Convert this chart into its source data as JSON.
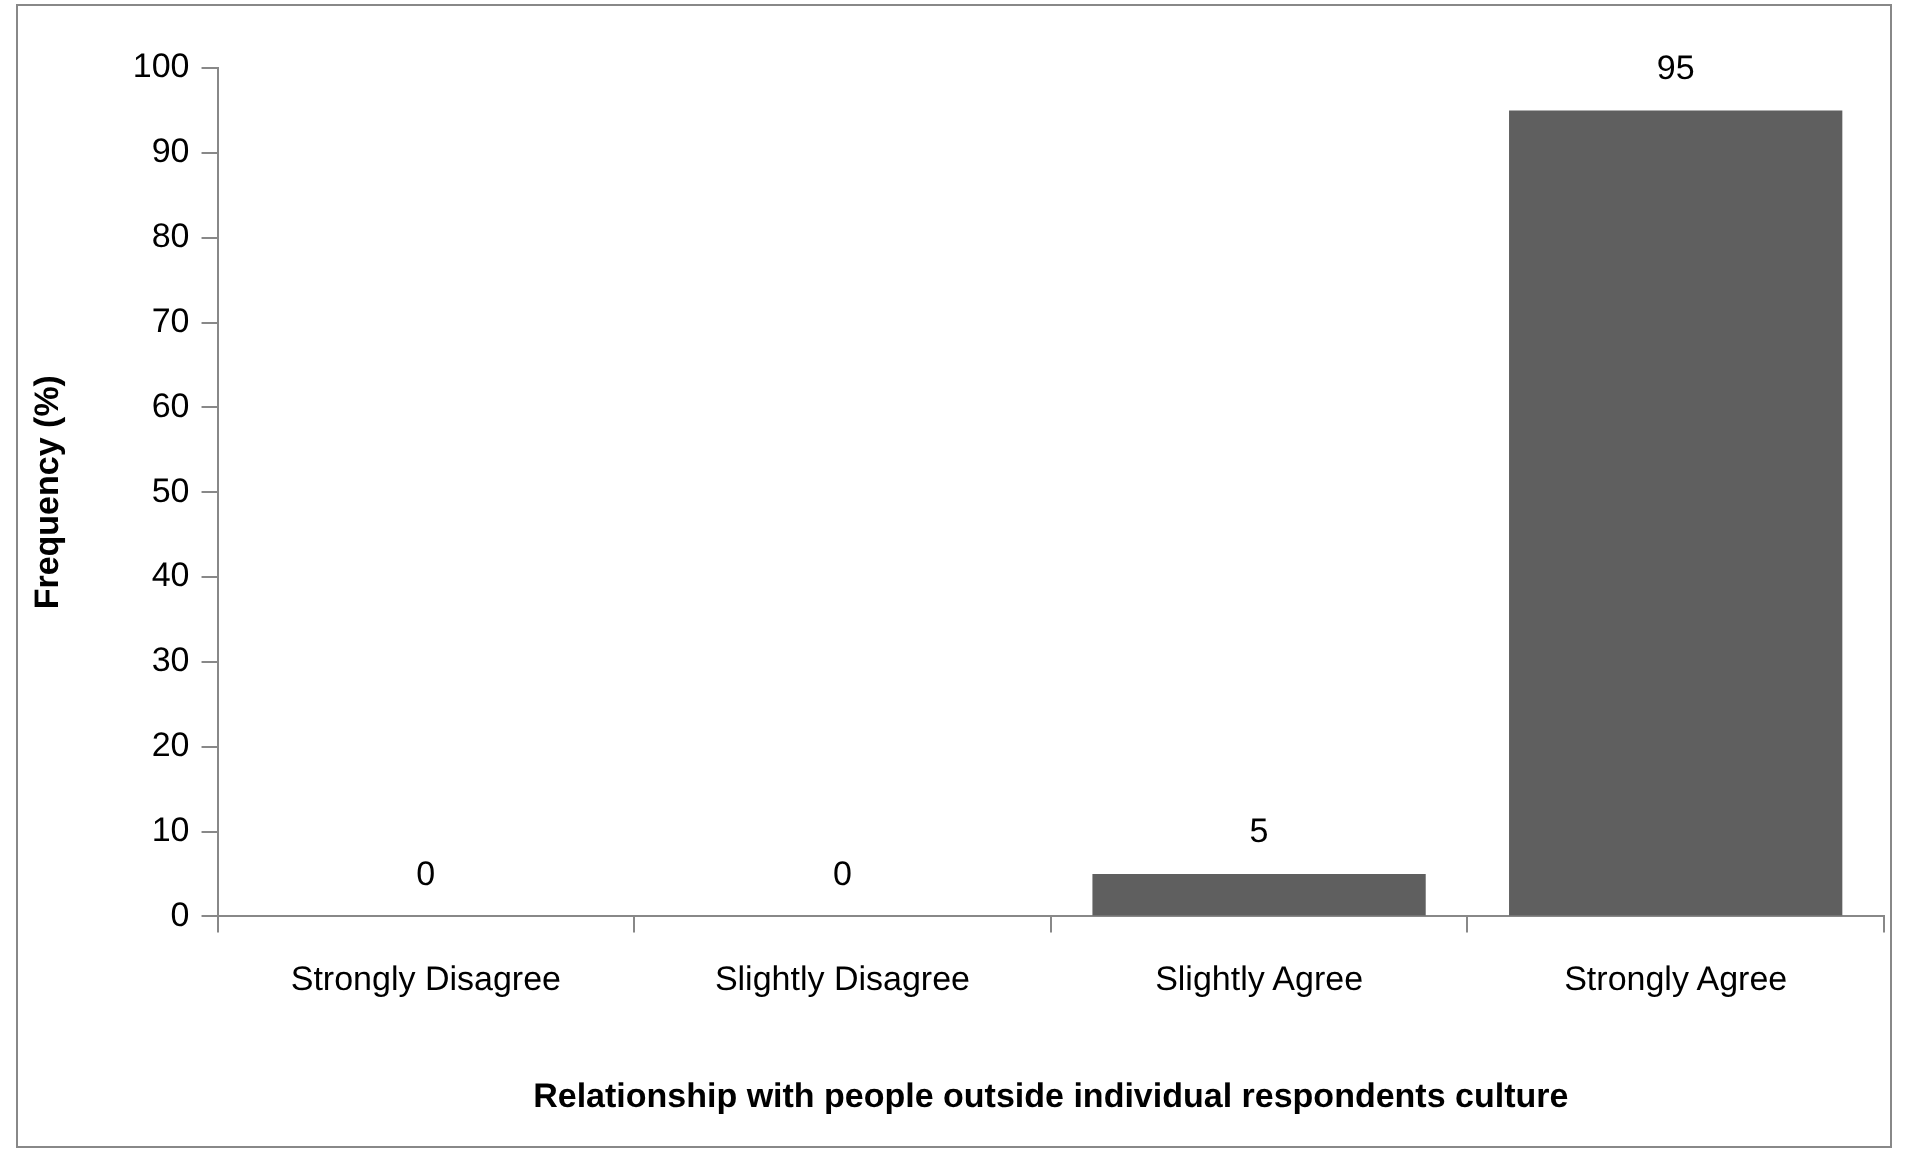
{
  "chart_data": {
    "type": "bar",
    "xlabel": "Relationship with people outside individual respondents culture",
    "ylabel": "Frequency (%)",
    "categories": [
      "Strongly Disagree",
      "Slightly Disagree",
      "Slightly Agree",
      "Strongly Agree"
    ],
    "values": [
      0,
      0,
      5,
      95
    ],
    "color": "#5f5f5f",
    "ylim": [
      0,
      100
    ],
    "yticks": [
      0,
      10,
      20,
      30,
      40,
      50,
      60,
      70,
      80,
      90,
      100
    ],
    "grid": false,
    "legend": false,
    "data_labels": true
  }
}
